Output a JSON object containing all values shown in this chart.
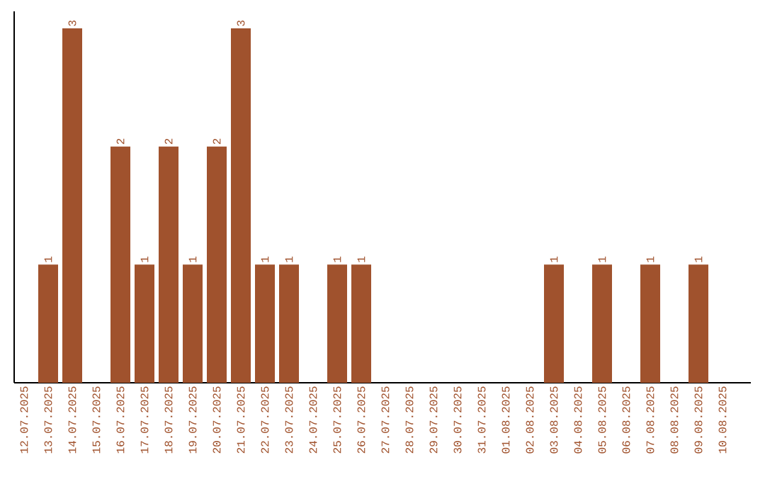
{
  "chart_data": {
    "type": "bar",
    "categories": [
      "12.07.2025",
      "13.07.2025",
      "14.07.2025",
      "15.07.2025",
      "16.07.2025",
      "17.07.2025",
      "18.07.2025",
      "19.07.2025",
      "20.07.2025",
      "21.07.2025",
      "22.07.2025",
      "23.07.2025",
      "24.07.2025",
      "25.07.2025",
      "26.07.2025",
      "27.07.2025",
      "28.07.2025",
      "29.07.2025",
      "30.07.2025",
      "31.07.2025",
      "01.08.2025",
      "02.08.2025",
      "03.08.2025",
      "04.08.2025",
      "05.08.2025",
      "06.08.2025",
      "07.08.2025",
      "08.08.2025",
      "09.08.2025",
      "10.08.2025"
    ],
    "values": [
      0,
      1,
      3,
      0,
      2,
      1,
      2,
      1,
      2,
      3,
      1,
      1,
      0,
      1,
      1,
      0,
      0,
      0,
      0,
      0,
      0,
      0,
      1,
      0,
      1,
      0,
      1,
      0,
      1,
      0
    ],
    "value_labels": [
      null,
      "1",
      "3",
      null,
      "2",
      "1",
      "2",
      "1",
      "2",
      "3",
      "1",
      "1",
      null,
      "1",
      "1",
      null,
      null,
      null,
      null,
      null,
      null,
      null,
      "1",
      null,
      "1",
      null,
      "1",
      null,
      "1",
      null
    ],
    "color": "#a0522d"
  }
}
